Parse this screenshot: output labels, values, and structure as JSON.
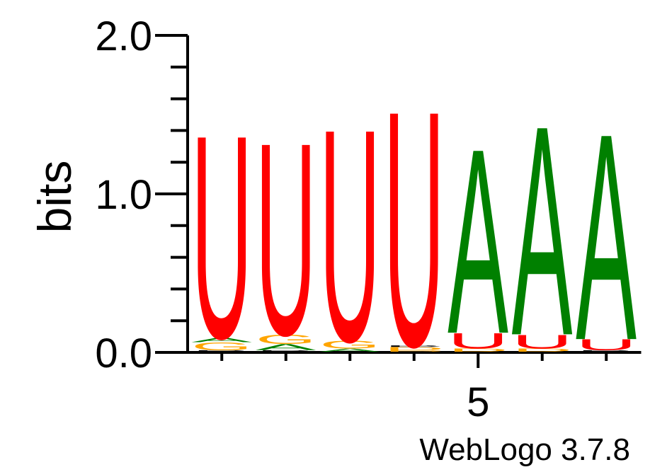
{
  "chart_data": {
    "type": "sequence-logo",
    "ylabel": "bits",
    "ylim": [
      0,
      2
    ],
    "y_ticks": [
      "0.0",
      "1.0",
      "2.0"
    ],
    "x_tick_labels": [
      {
        "position": 5,
        "label": "5"
      }
    ],
    "credit": "WebLogo 3.7.8",
    "colors": {
      "U": "#ff0000",
      "A": "#008000",
      "G": "#ffa500",
      "D": "#ffa500",
      "B": "#000000"
    },
    "positions": [
      {
        "index": 1,
        "stack": [
          {
            "letter": "B",
            "bits": 0.01
          },
          {
            "letter": "G",
            "bits": 0.05
          },
          {
            "letter": "A",
            "bits": 0.03
          },
          {
            "letter": "U",
            "bits": 1.32
          }
        ]
      },
      {
        "index": 2,
        "stack": [
          {
            "letter": "B",
            "bits": 0.01
          },
          {
            "letter": "A",
            "bits": 0.04
          },
          {
            "letter": "G",
            "bits": 0.06
          },
          {
            "letter": "U",
            "bits": 1.25
          }
        ]
      },
      {
        "index": 3,
        "stack": [
          {
            "letter": "A",
            "bits": 0.02
          },
          {
            "letter": "G",
            "bits": 0.05
          },
          {
            "letter": "U",
            "bits": 1.38
          }
        ]
      },
      {
        "index": 4,
        "stack": [
          {
            "letter": "D",
            "bits": 0.01
          },
          {
            "letter": "D",
            "bits": 0.02
          },
          {
            "letter": "B",
            "bits": 0.01
          },
          {
            "letter": "U",
            "bits": 1.53
          }
        ]
      },
      {
        "index": 5,
        "stack": [
          {
            "letter": "D",
            "bits": 0.02
          },
          {
            "letter": "U",
            "bits": 0.1
          },
          {
            "letter": "A",
            "bits": 1.2
          }
        ]
      },
      {
        "index": 6,
        "stack": [
          {
            "letter": "D",
            "bits": 0.02
          },
          {
            "letter": "U",
            "bits": 0.09
          },
          {
            "letter": "A",
            "bits": 1.36
          }
        ]
      },
      {
        "index": 7,
        "stack": [
          {
            "letter": "B",
            "bits": 0.01
          },
          {
            "letter": "U",
            "bits": 0.07
          },
          {
            "letter": "A",
            "bits": 1.34
          }
        ]
      }
    ]
  }
}
